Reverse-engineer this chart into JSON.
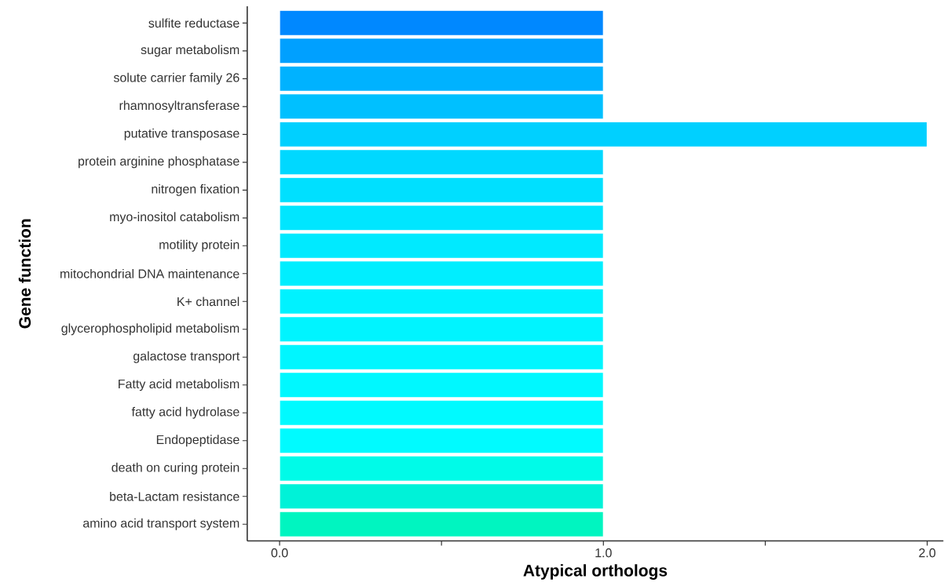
{
  "chart_data": {
    "type": "bar",
    "orientation": "horizontal",
    "xlabel": "Atypical orthologs",
    "ylabel": "Gene function",
    "categories": [
      "sulfite reductase",
      "sugar metabolism",
      "solute carrier family 26",
      "rhamnosyltransferase",
      "putative transposase",
      "protein arginine phosphatase",
      "nitrogen fixation",
      "myo-inositol catabolism",
      "motility protein",
      "mitochondrial DNA maintenance",
      "K+ channel",
      "glycerophospholipid metabolism",
      "galactose transport",
      "Fatty acid metabolism",
      "fatty acid hydrolase",
      "Endopeptidase",
      "death on curing protein",
      "beta-Lactam resistance",
      "amino acid transport system"
    ],
    "values": [
      1,
      1,
      1,
      1,
      2,
      1,
      1,
      1,
      1,
      1,
      1,
      1,
      1,
      1,
      1,
      1,
      1,
      1,
      1
    ],
    "colors": [
      "#0088ff",
      "#00a0ff",
      "#00b2ff",
      "#00c0ff",
      "#00d0ff",
      "#00d8ff",
      "#00e0ff",
      "#00e6ff",
      "#00eaff",
      "#00eeff",
      "#00f2ff",
      "#00f4ff",
      "#00f6ff",
      "#00f8ff",
      "#00faff",
      "#00fbff",
      "#00fbe8",
      "#00f2d8",
      "#00f5c0"
    ],
    "xlim": [
      -0.1,
      2.05
    ],
    "xticks": [
      {
        "value": 0,
        "label": "0.0"
      },
      {
        "value": 0.5,
        "label": null
      },
      {
        "value": 1,
        "label": "1.0"
      },
      {
        "value": 1.5,
        "label": null
      },
      {
        "value": 2,
        "label": "2.0"
      }
    ]
  }
}
